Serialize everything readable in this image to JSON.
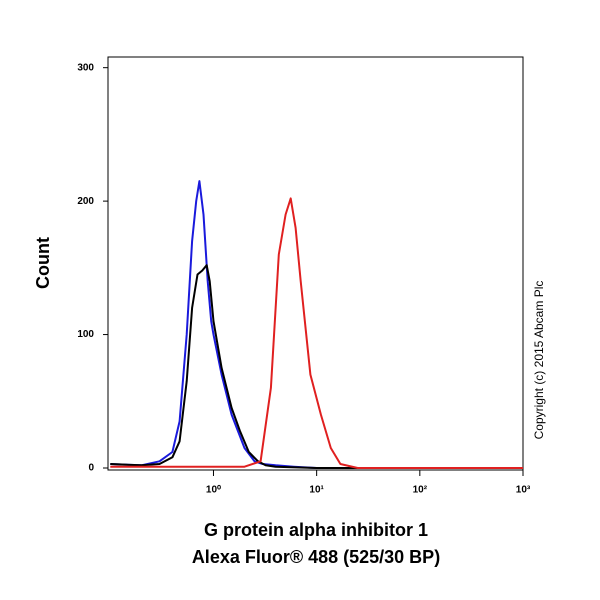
{
  "chart_data": {
    "type": "line",
    "xscale": "log",
    "xlabel": [
      "G protein alpha inhibitor 1",
      "Alexa Fluor® 488 (525/30 BP)"
    ],
    "ylabel": "Count",
    "annotation": "Copyright (c) 2015 Abcam Plc",
    "xlim": [
      0.095,
      1000
    ],
    "ylim": [
      -1.5,
      308
    ],
    "xticks": [
      {
        "value": 1,
        "label": "10⁰"
      },
      {
        "value": 10,
        "label": "10¹"
      },
      {
        "value": 100,
        "label": "10²"
      },
      {
        "value": 1000,
        "label": "10³"
      }
    ],
    "yticks": [
      0,
      100,
      200,
      300
    ],
    "series": [
      {
        "name": "blue",
        "color": "#1a1adc",
        "x": [
          0.1,
          0.2,
          0.3,
          0.4,
          0.47,
          0.55,
          0.62,
          0.68,
          0.73,
          0.8,
          0.88,
          0.95,
          1.0,
          1.2,
          1.5,
          2.0,
          2.5,
          3.0,
          4.0,
          6.0,
          10,
          1000
        ],
        "values": [
          3,
          2,
          5,
          12,
          35,
          100,
          170,
          200,
          215,
          190,
          140,
          110,
          100,
          70,
          40,
          15,
          5,
          3,
          2,
          1,
          0,
          0
        ]
      },
      {
        "name": "black",
        "color": "#000000",
        "x": [
          0.1,
          0.2,
          0.3,
          0.4,
          0.47,
          0.55,
          0.62,
          0.7,
          0.78,
          0.86,
          0.92,
          1.0,
          1.2,
          1.5,
          1.8,
          2.2,
          2.7,
          3.2,
          4.0,
          10,
          1000
        ],
        "values": [
          3,
          2,
          3,
          8,
          20,
          65,
          120,
          145,
          148,
          152,
          140,
          110,
          75,
          45,
          28,
          12,
          5,
          2,
          1,
          0,
          0
        ]
      },
      {
        "name": "red",
        "color": "#e02020",
        "x": [
          0.1,
          0.5,
          1.0,
          2.0,
          2.86,
          3.6,
          4.3,
          5.0,
          5.6,
          6.25,
          7.0,
          8.7,
          11,
          13.7,
          17,
          25,
          1000
        ],
        "values": [
          1,
          1,
          1,
          1,
          5,
          60,
          160,
          190,
          202,
          180,
          140,
          70,
          40,
          15,
          3,
          0,
          0
        ]
      }
    ]
  }
}
